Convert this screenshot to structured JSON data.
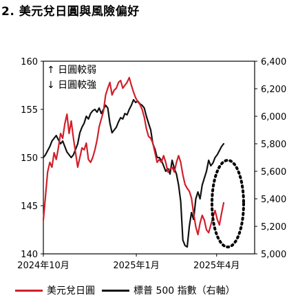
{
  "chart_data": {
    "type": "line",
    "title": "2. 美元兌日圓與風險偏好",
    "annotations": [
      "↑ 日圓較弱",
      "↓ 日圓較強"
    ],
    "x_tick_labels": [
      "2024年10月",
      "2025年1月",
      "2025年4月"
    ],
    "y_left": {
      "ticks": [
        "140",
        "145",
        "150",
        "155",
        "160"
      ],
      "range": [
        140,
        160
      ]
    },
    "y_right": {
      "ticks": [
        "5,000",
        "5,200",
        "5,400",
        "5,600",
        "5,800",
        "6,000",
        "6,200",
        "6,400"
      ],
      "range": [
        5000,
        6400
      ]
    },
    "grid": false,
    "legend_position": "bottom",
    "series": [
      {
        "name": "美元兌日圓",
        "axis": "left",
        "color": "#d11f2a",
        "values": [
          143.5,
          146.0,
          148.5,
          149.5,
          149.0,
          150.5,
          149.8,
          151.0,
          152.5,
          152.0,
          153.5,
          154.5,
          152.5,
          153.8,
          152.0,
          150.5,
          149.0,
          150.0,
          151.0,
          150.8,
          151.5,
          149.8,
          149.5,
          150.0,
          150.8,
          151.8,
          153.2,
          154.0,
          154.8,
          156.5,
          157.2,
          157.8,
          156.5,
          157.0,
          157.2,
          157.8,
          158.0,
          157.2,
          157.5,
          157.8,
          158.3,
          157.5,
          156.8,
          156.2,
          155.8,
          155.5,
          155.0,
          154.2,
          153.0,
          152.2,
          152.0,
          151.5,
          150.5,
          149.5,
          149.8,
          149.5,
          150.2,
          149.5,
          148.5,
          148.8,
          149.0,
          148.5,
          149.5,
          150.2,
          149.5,
          148.2,
          147.2,
          146.8,
          146.5,
          145.8,
          144.2,
          142.8,
          142.0,
          143.2,
          144.0,
          143.5,
          142.5,
          142.2,
          143.0,
          143.8,
          144.5,
          143.6,
          143.0,
          144.2,
          145.3
        ]
      },
      {
        "name": "標普 500 指數（右軸）",
        "axis": "right",
        "color": "#111111",
        "values": [
          5700,
          5720,
          5750,
          5780,
          5820,
          5840,
          5860,
          5830,
          5800,
          5820,
          5780,
          5740,
          5720,
          5700,
          5720,
          5760,
          5800,
          5880,
          5920,
          5950,
          6000,
          5980,
          6020,
          6040,
          6050,
          6030,
          6060,
          6020,
          6050,
          6080,
          6060,
          5950,
          5880,
          5900,
          5920,
          5960,
          5990,
          5980,
          6020,
          6010,
          6050,
          6080,
          6120,
          6100,
          6110,
          6090,
          6080,
          6060,
          6000,
          5950,
          5900,
          5800,
          5760,
          5700,
          5700,
          5680,
          5640,
          5600,
          5620,
          5580,
          5680,
          5620,
          5580,
          5500,
          5380,
          5100,
          5060,
          5050,
          5200,
          5300,
          5250,
          5400,
          5450,
          5400,
          5500,
          5550,
          5600,
          5680,
          5640,
          5660,
          5700,
          5720,
          5750,
          5780,
          5800
        ]
      }
    ]
  }
}
